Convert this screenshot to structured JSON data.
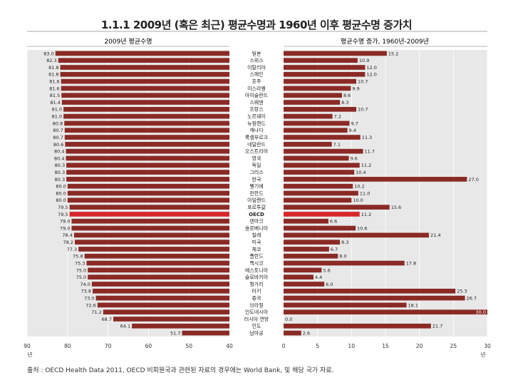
{
  "title": "1.1.1 2009년 (혹은 최근) 평균수명과 1960년 이후 평균수명 증가치",
  "source": "출처 : OECD Health Data 2011, OECD 비회원국과 관련된 자료의 경우에는 World Bank, 및 해당 국가 자료.",
  "colors": {
    "bar": "#8b2a25",
    "highlight": "#d8272b",
    "panel": "#e8e8e8",
    "grid": "#ffffff"
  },
  "chart_data": [
    {
      "type": "bar",
      "orientation": "horizontal",
      "title": "2009년 평균수명",
      "xlim": [
        40,
        90
      ],
      "direction": "reversed",
      "xticks": [
        "90",
        "80",
        "70",
        "60",
        "50",
        "40"
      ],
      "xunit": "년",
      "categories": [
        "일본",
        "스위스",
        "이탈리아",
        "스페인",
        "호주",
        "이스라엘",
        "아이슬란드",
        "스웨덴",
        "프랑스",
        "노르웨이",
        "뉴질랜드",
        "캐나다",
        "룩셈부르크",
        "네덜란드",
        "오스트리아",
        "영국",
        "독일",
        "그리스",
        "한국",
        "벨기에",
        "핀란드",
        "아일랜드",
        "포르투갈",
        "OECD",
        "덴마크",
        "슬로베니아",
        "칠레",
        "미국",
        "체코",
        "폴란드",
        "멕시코",
        "에스토니아",
        "슬로바키아",
        "헝가리",
        "터키",
        "중국",
        "브라질",
        "인도네시아",
        "러시아 연방",
        "인도",
        "남아공"
      ],
      "values": [
        83.0,
        82.3,
        81.8,
        81.8,
        81.6,
        81.6,
        81.5,
        81.4,
        81.0,
        81.0,
        80.8,
        80.7,
        80.7,
        80.6,
        80.4,
        80.4,
        80.3,
        80.3,
        80.3,
        80.0,
        80.0,
        80.0,
        79.5,
        79.5,
        79.0,
        79.0,
        78.4,
        78.2,
        77.3,
        75.8,
        75.3,
        75.0,
        75.0,
        74.0,
        73.8,
        73.0,
        72.6,
        71.2,
        68.7,
        64.1,
        51.7
      ],
      "labels": [
        "83.0",
        "82.3",
        "81.8",
        "81.8",
        "81.6",
        "81.6",
        "81.5",
        "81.4",
        "81.0",
        "81.0",
        "80.8",
        "80.7",
        "80.7",
        "80.6",
        "80.4",
        "80.4",
        "80.3",
        "80.3",
        "80.3",
        "80.0",
        "80.0",
        "80.0",
        "79.5",
        "79.5",
        "79.0",
        "79.0",
        "78.4",
        "78.2",
        "77.3",
        "75.8",
        "75.3",
        "75.0",
        "75.0",
        "74.0",
        "73.8",
        "73.0",
        "72.6",
        "71.2",
        "68.7",
        "64.1",
        "51.7"
      ],
      "highlight": "OECD"
    },
    {
      "type": "bar",
      "orientation": "horizontal",
      "title": "평균수명 증가, 1960년-2009년",
      "xlim": [
        0,
        30
      ],
      "xticks": [
        "0",
        "5",
        "10",
        "15",
        "20",
        "25",
        "30"
      ],
      "xunit": "년",
      "categories": [
        "일본",
        "스위스",
        "이탈리아",
        "스페인",
        "호주",
        "이스라엘",
        "아이슬란드",
        "스웨덴",
        "프랑스",
        "노르웨이",
        "뉴질랜드",
        "캐나다",
        "룩셈부르크",
        "네덜란드",
        "오스트리아",
        "영국",
        "독일",
        "그리스",
        "한국",
        "벨기에",
        "핀란드",
        "아일랜드",
        "포르투갈",
        "OECD",
        "덴마크",
        "슬로베니아",
        "칠레",
        "미국",
        "체코",
        "폴란드",
        "멕시코",
        "에스토니아",
        "슬로바키아",
        "헝가리",
        "터키",
        "중국",
        "브라질",
        "인도네시아",
        "러시아 연방",
        "인도",
        "남아공"
      ],
      "values": [
        15.2,
        10.9,
        12.0,
        12.0,
        10.7,
        9.9,
        8.6,
        8.3,
        10.7,
        7.2,
        9.7,
        9.4,
        11.3,
        7.1,
        11.7,
        9.6,
        11.2,
        10.4,
        27.0,
        10.2,
        11.0,
        10.0,
        15.6,
        11.2,
        6.6,
        10.6,
        21.4,
        8.3,
        6.7,
        8.0,
        17.8,
        5.6,
        4.4,
        6.0,
        25.3,
        26.7,
        18.1,
        30.0,
        0.0,
        21.7,
        2.6
      ],
      "labels": [
        "15.2",
        "10.9",
        "12.0",
        "12.0",
        "10.7",
        "9.9",
        "8.6",
        "8.3",
        "10.7",
        "7.2",
        "9.7",
        "9.4",
        "11.3",
        "7.1",
        "11.7",
        "9.6",
        "11.2",
        "10.4",
        "27.0",
        "10.2",
        "11.0",
        "10.0",
        "15.6",
        "11.2",
        "6.6",
        "10.6",
        "21.4",
        "8.3",
        "6.7",
        "8.0",
        "17.8",
        "5.6",
        "4.4",
        "6.0",
        "25.3",
        "26.7",
        "18.1",
        "30.0",
        "0.0",
        "21.7",
        "2.6"
      ],
      "highlight": "OECD"
    }
  ]
}
